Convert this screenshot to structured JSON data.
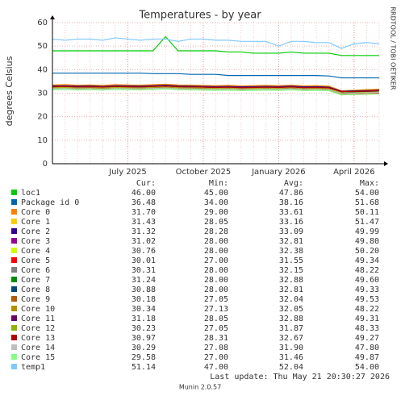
{
  "chart_data": {
    "type": "line",
    "title": "Temperatures - by year",
    "y_label": "degrees Celsius",
    "side_text": "RRDTOOL / TOBI OETIKER",
    "footer": "Last update: Thu May 21 20:30:27 2026",
    "version": "Munin 2.0.57",
    "legend_columns": [
      "Cur:",
      "Min:",
      "Avg:",
      "Max:"
    ],
    "categories": [
      null,
      null,
      null,
      null,
      null,
      null,
      "July 2025",
      null,
      null,
      null,
      null,
      null,
      "October 2025",
      null,
      null,
      null,
      null,
      null,
      "January 2026",
      null,
      null,
      null,
      null,
      null,
      "April 2026",
      null,
      null
    ],
    "ylim": [
      0,
      60
    ],
    "yticks": [
      0,
      10,
      20,
      30,
      40,
      50,
      60
    ],
    "grid": true,
    "series": [
      {
        "name": "loc1",
        "color": "#00cc00",
        "stats": [
          "46.00",
          "45.00",
          "47.86",
          "54.00"
        ],
        "values": [
          48,
          48,
          48,
          48,
          48,
          48,
          48,
          48,
          48,
          54,
          48,
          48,
          48,
          48,
          47.5,
          47.5,
          47,
          47,
          47,
          47.5,
          47,
          47,
          47,
          46,
          46,
          46,
          46
        ]
      },
      {
        "name": "Package id 0",
        "color": "#0066b3",
        "stats": [
          "36.48",
          "34.00",
          "38.16",
          "51.68"
        ],
        "values": [
          38.5,
          38.5,
          38.5,
          38.5,
          38.5,
          38.5,
          38.5,
          38.5,
          38.3,
          38.3,
          38.3,
          38,
          38,
          38,
          37.5,
          37.5,
          37.5,
          37.5,
          37.5,
          37.5,
          37.5,
          37.5,
          37.3,
          36.5,
          36.5,
          36.5,
          36.5
        ]
      },
      {
        "name": "Core 0",
        "color": "#ff8000",
        "stats": [
          "31.70",
          "29.00",
          "33.61",
          "50.11"
        ],
        "values": [
          33.5,
          33.6,
          33.4,
          33.5,
          33.3,
          33.6,
          33.5,
          33.4,
          33.6,
          33.8,
          33.5,
          33.4,
          33.3,
          33.2,
          33.3,
          33.1,
          33.2,
          33.3,
          33.2,
          33.4,
          33.1,
          33.2,
          33,
          31,
          31.2,
          31.5,
          31.7
        ]
      },
      {
        "name": "Core 1",
        "color": "#ffcc00",
        "stats": [
          "31.43",
          "28.05",
          "33.16",
          "51.47"
        ],
        "values": [
          33.2,
          33.3,
          33.1,
          33.2,
          33,
          33.3,
          33.2,
          33.1,
          33.3,
          33.5,
          33.2,
          33.1,
          33,
          32.9,
          33,
          32.8,
          32.9,
          33,
          32.9,
          33.1,
          32.8,
          32.9,
          32.7,
          30.8,
          31,
          31.2,
          31.4
        ]
      },
      {
        "name": "Core 2",
        "color": "#330099",
        "stats": [
          "31.32",
          "28.28",
          "33.09",
          "49.99"
        ],
        "values": [
          33.1,
          33.2,
          33,
          33.1,
          32.9,
          33.2,
          33.1,
          33,
          33.2,
          33.4,
          33.1,
          33,
          32.9,
          32.8,
          32.9,
          32.7,
          32.8,
          32.9,
          32.8,
          33,
          32.7,
          32.8,
          32.6,
          30.8,
          31,
          31.1,
          31.3
        ]
      },
      {
        "name": "Core 3",
        "color": "#990099",
        "stats": [
          "31.02",
          "28.00",
          "32.81",
          "49.80"
        ],
        "values": [
          32.8,
          32.9,
          32.7,
          32.8,
          32.6,
          32.9,
          32.8,
          32.7,
          32.9,
          33.1,
          32.8,
          32.7,
          32.6,
          32.5,
          32.6,
          32.4,
          32.5,
          32.6,
          32.5,
          32.7,
          32.4,
          32.5,
          32.3,
          30.5,
          30.7,
          30.8,
          31
        ]
      },
      {
        "name": "Core 4",
        "color": "#ccff00",
        "stats": [
          "30.76",
          "28.00",
          "32.38",
          "50.20"
        ],
        "values": [
          32.4,
          32.5,
          32.3,
          32.4,
          32.2,
          32.5,
          32.4,
          32.3,
          32.5,
          32.7,
          32.4,
          32.3,
          32.2,
          32.1,
          32.2,
          32,
          32.1,
          32.2,
          32.1,
          32.3,
          32,
          32.1,
          31.9,
          30.2,
          30.4,
          30.6,
          30.8
        ]
      },
      {
        "name": "Core 5",
        "color": "#ff0000",
        "stats": [
          "30.01",
          "27.00",
          "31.55",
          "49.34"
        ],
        "values": [
          31.6,
          31.7,
          31.5,
          31.6,
          31.4,
          31.7,
          31.6,
          31.5,
          31.7,
          31.9,
          31.6,
          31.5,
          31.4,
          31.3,
          31.4,
          31.2,
          31.3,
          31.4,
          31.3,
          31.5,
          31.2,
          31.3,
          31.1,
          29.6,
          29.8,
          29.9,
          30
        ]
      },
      {
        "name": "Core 6",
        "color": "#808080",
        "stats": [
          "30.31",
          "28.00",
          "32.15",
          "48.22"
        ],
        "values": [
          32.2,
          32.3,
          32.1,
          32.2,
          32,
          32.3,
          32.2,
          32.1,
          32.3,
          32.5,
          32.2,
          32.1,
          32,
          31.9,
          32,
          31.8,
          31.9,
          32,
          31.9,
          32.1,
          31.8,
          31.9,
          31.7,
          29.9,
          30.1,
          30.2,
          30.3
        ]
      },
      {
        "name": "Core 7",
        "color": "#008f00",
        "stats": [
          "31.24",
          "28.00",
          "32.88",
          "49.60"
        ],
        "values": [
          32.9,
          33,
          32.8,
          32.9,
          32.7,
          33,
          32.9,
          32.8,
          33,
          33.2,
          32.9,
          32.8,
          32.7,
          32.6,
          32.7,
          32.5,
          32.6,
          32.7,
          32.6,
          32.8,
          32.5,
          32.6,
          32.4,
          30.8,
          31,
          31.1,
          31.2
        ]
      },
      {
        "name": "Core 8",
        "color": "#00487d",
        "stats": [
          "30.88",
          "28.00",
          "32.81",
          "49.33"
        ],
        "values": [
          32.8,
          32.9,
          32.7,
          32.8,
          32.6,
          32.9,
          32.8,
          32.7,
          32.9,
          33.1,
          32.8,
          32.7,
          32.6,
          32.5,
          32.6,
          32.4,
          32.5,
          32.6,
          32.5,
          32.7,
          32.4,
          32.5,
          32.3,
          30.5,
          30.6,
          30.7,
          30.9
        ]
      },
      {
        "name": "Core 9",
        "color": "#b35a00",
        "stats": [
          "30.18",
          "27.05",
          "32.04",
          "49.53"
        ],
        "values": [
          32.1,
          32.2,
          32,
          32.1,
          31.9,
          32.2,
          32.1,
          32,
          32.2,
          32.4,
          32.1,
          32,
          31.9,
          31.8,
          31.9,
          31.7,
          31.8,
          31.9,
          31.8,
          32,
          31.7,
          31.8,
          31.6,
          29.8,
          30,
          30.1,
          30.2
        ]
      },
      {
        "name": "Core 10",
        "color": "#b38f00",
        "stats": [
          "30.34",
          "27.13",
          "32.05",
          "48.22"
        ],
        "values": [
          32.1,
          32.2,
          32,
          32.1,
          31.9,
          32.2,
          32.1,
          32,
          32.2,
          32.4,
          32.1,
          32,
          31.9,
          31.8,
          31.9,
          31.7,
          31.8,
          31.9,
          31.8,
          32,
          31.7,
          31.8,
          31.6,
          29.9,
          30.1,
          30.2,
          30.3
        ]
      },
      {
        "name": "Core 11",
        "color": "#6b006b",
        "stats": [
          "31.18",
          "28.05",
          "32.88",
          "49.31"
        ],
        "values": [
          32.9,
          33,
          32.8,
          32.9,
          32.7,
          33,
          32.9,
          32.8,
          33,
          33.2,
          32.9,
          32.8,
          32.7,
          32.6,
          32.7,
          32.5,
          32.6,
          32.7,
          32.6,
          32.8,
          32.5,
          32.6,
          32.4,
          30.8,
          30.9,
          31,
          31.2
        ]
      },
      {
        "name": "Core 12",
        "color": "#8fb300",
        "stats": [
          "30.23",
          "27.05",
          "31.87",
          "48.33"
        ],
        "values": [
          31.9,
          32,
          31.8,
          31.9,
          31.7,
          32,
          31.9,
          31.8,
          32,
          32.2,
          31.9,
          31.8,
          31.7,
          31.6,
          31.7,
          31.5,
          31.6,
          31.7,
          31.6,
          31.8,
          31.5,
          31.6,
          31.4,
          29.8,
          30,
          30.1,
          30.2
        ]
      },
      {
        "name": "Core 13",
        "color": "#b30000",
        "stats": [
          "30.97",
          "28.31",
          "32.67",
          "49.27"
        ],
        "values": [
          32.7,
          32.8,
          32.6,
          32.7,
          32.5,
          32.8,
          32.7,
          32.6,
          32.8,
          33,
          32.7,
          32.6,
          32.5,
          32.4,
          32.5,
          32.3,
          32.4,
          32.5,
          32.4,
          32.6,
          32.3,
          32.4,
          32.2,
          30.6,
          30.7,
          30.8,
          31
        ]
      },
      {
        "name": "Core 14",
        "color": "#bebebe",
        "stats": [
          "30.29",
          "27.08",
          "31.90",
          "47.80"
        ],
        "values": [
          31.9,
          32,
          31.8,
          31.9,
          31.7,
          32,
          31.9,
          31.8,
          32,
          32.2,
          31.9,
          31.8,
          31.7,
          31.6,
          31.7,
          31.5,
          31.6,
          31.7,
          31.6,
          31.8,
          31.5,
          31.6,
          31.4,
          29.9,
          30,
          30.1,
          30.3
        ]
      },
      {
        "name": "Core 15",
        "color": "#80ff80",
        "stats": [
          "29.58",
          "27.00",
          "31.46",
          "49.87"
        ],
        "values": [
          31.5,
          31.6,
          31.4,
          31.5,
          31.3,
          31.6,
          31.5,
          31.4,
          31.6,
          31.8,
          31.5,
          31.4,
          31.3,
          31.2,
          31.3,
          31.1,
          31.2,
          31.3,
          31.2,
          31.4,
          31.1,
          31.2,
          31,
          29.3,
          29.4,
          29.5,
          29.6
        ]
      },
      {
        "name": "temp1",
        "color": "#80c9ff",
        "stats": [
          "51.14",
          "47.00",
          "52.04",
          "54.00"
        ],
        "values": [
          53,
          52.5,
          53,
          53,
          52.5,
          53.5,
          53,
          52.5,
          53,
          53,
          52,
          53,
          53,
          52.5,
          52.5,
          52,
          52,
          52,
          50,
          52,
          52,
          51.5,
          51.5,
          49,
          51,
          51.5,
          51
        ]
      }
    ]
  }
}
